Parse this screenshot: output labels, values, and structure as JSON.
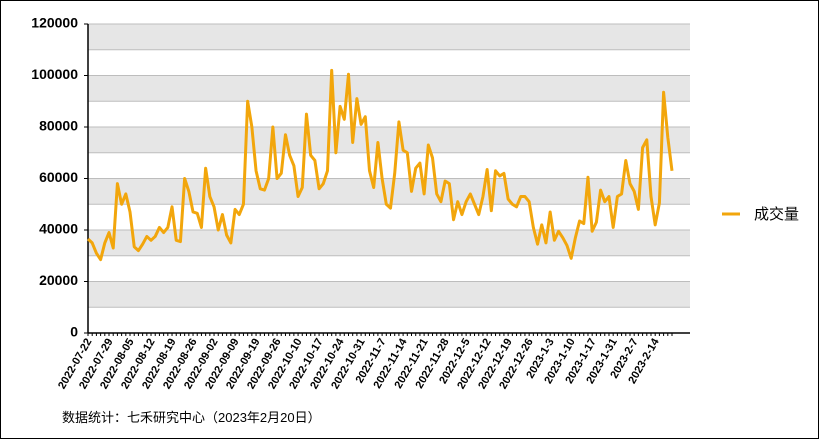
{
  "chart_data": {
    "type": "line",
    "categories": [
      "2022-07-22",
      null,
      null,
      null,
      null,
      "2022-07-29",
      null,
      null,
      null,
      null,
      "2022-08-05",
      null,
      null,
      null,
      null,
      "2022-08-12",
      null,
      null,
      null,
      null,
      "2022-08-19",
      null,
      null,
      null,
      null,
      "2022-08-26",
      null,
      null,
      null,
      null,
      "2022-09-02",
      null,
      null,
      null,
      null,
      "2022-09-09",
      null,
      null,
      null,
      null,
      "2022-09-19",
      null,
      null,
      null,
      null,
      "2022-09-26",
      null,
      null,
      null,
      null,
      "2022-10-10",
      null,
      null,
      null,
      null,
      "2022-10-17",
      null,
      null,
      null,
      null,
      "2022-10-24",
      null,
      null,
      null,
      null,
      "2022-10-31",
      null,
      null,
      null,
      null,
      "2022-11-7",
      null,
      null,
      null,
      null,
      "2022-11-14",
      null,
      null,
      null,
      null,
      "2022-11-21",
      null,
      null,
      null,
      null,
      "2022-11-28",
      null,
      null,
      null,
      null,
      "2022-12-5",
      null,
      null,
      null,
      null,
      "2022-12-12",
      null,
      null,
      null,
      null,
      "2022-12-19",
      null,
      null,
      null,
      null,
      "2022-12-26",
      null,
      null,
      null,
      null,
      "2023-1-3",
      null,
      null,
      null,
      null,
      "2023-1-10",
      null,
      null,
      null,
      null,
      "2023-1-17",
      null,
      null,
      null,
      null,
      "2023-1-31",
      null,
      null,
      null,
      null,
      "2023-2-7",
      null,
      null,
      null,
      null,
      "2023-2-14",
      null,
      null,
      null,
      null
    ],
    "series": [
      {
        "name": "成交量",
        "color": "#f2a60c",
        "values": [
          36500,
          35000,
          31000,
          28500,
          35000,
          39000,
          33000,
          58000,
          50000,
          54000,
          47000,
          33500,
          32000,
          34500,
          37500,
          36000,
          37500,
          41000,
          39000,
          41000,
          49000,
          36000,
          35500,
          60000,
          55000,
          47000,
          46500,
          41000,
          64000,
          53000,
          49000,
          40000,
          46000,
          38000,
          35000,
          48000,
          46000,
          50000,
          90000,
          80000,
          63000,
          56000,
          55500,
          60000,
          80000,
          60000,
          62000,
          77000,
          69000,
          65000,
          53000,
          56500,
          85000,
          69000,
          67000,
          56000,
          58000,
          63000,
          102000,
          70000,
          88000,
          83000,
          100500,
          74000,
          91000,
          81000,
          84000,
          63000,
          56500,
          74000,
          60000,
          50000,
          48500,
          62000,
          82000,
          71000,
          70000,
          55000,
          64000,
          66000,
          54000,
          73000,
          68000,
          54000,
          51000,
          59000,
          58000,
          44000,
          51000,
          46000,
          51000,
          54000,
          50000,
          46000,
          53000,
          63500,
          47500,
          63000,
          61000,
          62000,
          52000,
          50000,
          49000,
          53000,
          53000,
          51000,
          41000,
          34500,
          42000,
          35000,
          47000,
          36000,
          39500,
          37000,
          34000,
          29000,
          37000,
          43500,
          42500,
          60500,
          39500,
          43000,
          55500,
          51000,
          53000,
          41000,
          53000,
          54000,
          67000,
          58000,
          55000,
          48000,
          72000,
          75000,
          53000,
          42000,
          50500,
          93500,
          76000,
          63000
        ]
      }
    ],
    "ylim": [
      0,
      120000
    ],
    "yticks": [
      0,
      20000,
      40000,
      60000,
      80000,
      100000,
      120000
    ],
    "grid": true,
    "legend": "right",
    "footnote": "数据统计：七禾研究中心（2023年2月20日）"
  }
}
